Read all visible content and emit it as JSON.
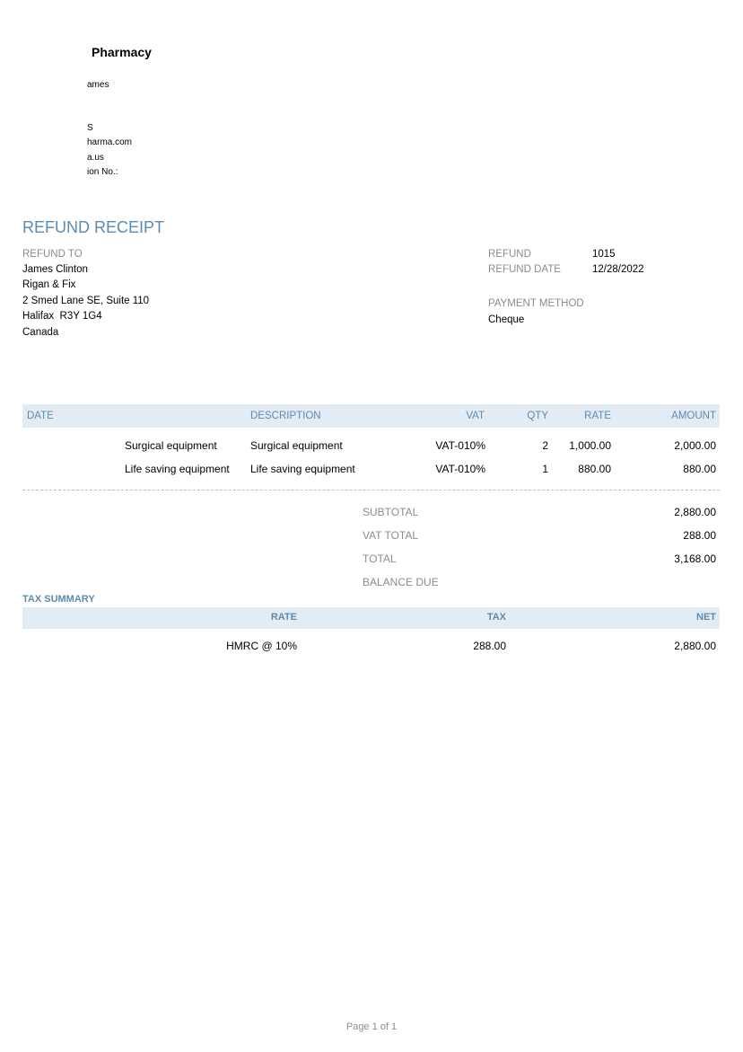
{
  "company": {
    "name": "Pharmacy",
    "lines": [
      "ames",
      "S",
      "harma.com",
      "a.us",
      "ion No.:"
    ]
  },
  "document": {
    "title": "REFUND RECEIPT"
  },
  "refund_to": {
    "label": "REFUND TO",
    "lines": [
      "James Clinton",
      "Rigan & Fix",
      "2 Smed Lane SE, Suite 110",
      "Halifax  R3Y 1G4",
      "Canada"
    ]
  },
  "meta": {
    "refund_label": "REFUND",
    "refund_value": "1015",
    "date_label": "REFUND DATE",
    "date_value": "12/28/2022",
    "payment_label": "PAYMENT METHOD",
    "payment_value": "Cheque"
  },
  "items_table": {
    "headers": {
      "date": "DATE",
      "description": "DESCRIPTION",
      "vat": "VAT",
      "qty": "QTY",
      "rate": "RATE",
      "amount": "AMOUNT"
    },
    "rows": [
      {
        "name": "Surgical equipment",
        "description": "Surgical equipment",
        "vat": "VAT-010%",
        "qty": "2",
        "rate": "1,000.00",
        "amount": "2,000.00"
      },
      {
        "name": "Life saving equipment",
        "description": "Life saving equipment",
        "vat": "VAT-010%",
        "qty": "1",
        "rate": "880.00",
        "amount": "880.00"
      }
    ]
  },
  "totals": {
    "subtotal_label": "SUBTOTAL",
    "subtotal_value": "2,880.00",
    "vat_label": "VAT TOTAL",
    "vat_value": "288.00",
    "total_label": "TOTAL",
    "total_value": "3,168.00",
    "balance_label": "BALANCE DUE",
    "balance_value": ""
  },
  "tax_summary": {
    "title": "TAX SUMMARY",
    "headers": {
      "rate": "RATE",
      "tax": "TAX",
      "net": "NET"
    },
    "rows": [
      {
        "rate": "HMRC @ 10%",
        "tax": "288.00",
        "net": "2,880.00"
      }
    ]
  },
  "footer": {
    "page": "Page 1 of 1"
  }
}
